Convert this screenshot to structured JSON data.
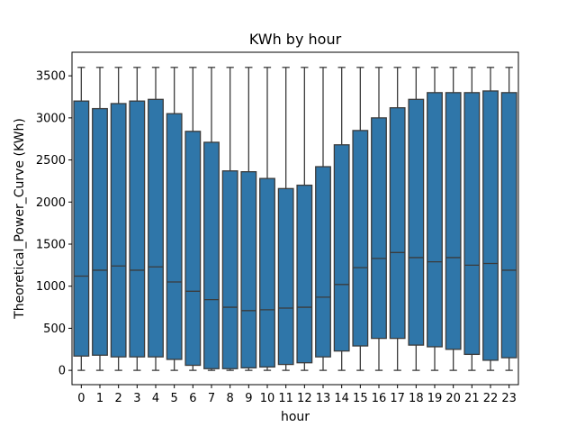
{
  "chart_data": {
    "type": "box",
    "title": "KWh by hour",
    "xlabel": "hour",
    "ylabel": "Theoretical_Power_Curve (KWh)",
    "ylim": [
      -170,
      3780
    ],
    "yticks": [
      0,
      500,
      1000,
      1500,
      2000,
      2500,
      3000,
      3500
    ],
    "grid": false,
    "box_color": "#2f76a9",
    "line_color": "#3b3b3b",
    "categories": [
      "0",
      "1",
      "2",
      "3",
      "4",
      "5",
      "6",
      "7",
      "8",
      "9",
      "10",
      "11",
      "12",
      "13",
      "14",
      "15",
      "16",
      "17",
      "18",
      "19",
      "20",
      "21",
      "22",
      "23"
    ],
    "boxes": [
      {
        "min": 0,
        "q1": 170,
        "median": 1120,
        "q3": 3200,
        "max": 3600
      },
      {
        "min": 0,
        "q1": 180,
        "median": 1190,
        "q3": 3110,
        "max": 3600
      },
      {
        "min": 0,
        "q1": 160,
        "median": 1240,
        "q3": 3170,
        "max": 3600
      },
      {
        "min": 0,
        "q1": 160,
        "median": 1190,
        "q3": 3200,
        "max": 3600
      },
      {
        "min": 0,
        "q1": 160,
        "median": 1230,
        "q3": 3220,
        "max": 3600
      },
      {
        "min": 0,
        "q1": 130,
        "median": 1050,
        "q3": 3050,
        "max": 3600
      },
      {
        "min": 0,
        "q1": 60,
        "median": 940,
        "q3": 2840,
        "max": 3600
      },
      {
        "min": 0,
        "q1": 20,
        "median": 840,
        "q3": 2710,
        "max": 3600
      },
      {
        "min": 0,
        "q1": 20,
        "median": 750,
        "q3": 2370,
        "max": 3600
      },
      {
        "min": 0,
        "q1": 30,
        "median": 710,
        "q3": 2360,
        "max": 3600
      },
      {
        "min": 0,
        "q1": 40,
        "median": 720,
        "q3": 2280,
        "max": 3600
      },
      {
        "min": 0,
        "q1": 70,
        "median": 740,
        "q3": 2160,
        "max": 3600
      },
      {
        "min": 0,
        "q1": 90,
        "median": 750,
        "q3": 2200,
        "max": 3600
      },
      {
        "min": 0,
        "q1": 160,
        "median": 870,
        "q3": 2420,
        "max": 3600
      },
      {
        "min": 0,
        "q1": 230,
        "median": 1020,
        "q3": 2680,
        "max": 3600
      },
      {
        "min": 0,
        "q1": 290,
        "median": 1220,
        "q3": 2850,
        "max": 3600
      },
      {
        "min": 0,
        "q1": 380,
        "median": 1330,
        "q3": 3000,
        "max": 3600
      },
      {
        "min": 0,
        "q1": 380,
        "median": 1400,
        "q3": 3120,
        "max": 3600
      },
      {
        "min": 0,
        "q1": 300,
        "median": 1340,
        "q3": 3220,
        "max": 3600
      },
      {
        "min": 0,
        "q1": 280,
        "median": 1290,
        "q3": 3300,
        "max": 3600
      },
      {
        "min": 0,
        "q1": 250,
        "median": 1340,
        "q3": 3300,
        "max": 3600
      },
      {
        "min": 0,
        "q1": 190,
        "median": 1250,
        "q3": 3300,
        "max": 3600
      },
      {
        "min": 0,
        "q1": 120,
        "median": 1270,
        "q3": 3320,
        "max": 3600
      },
      {
        "min": 0,
        "q1": 150,
        "median": 1190,
        "q3": 3300,
        "max": 3600
      }
    ]
  }
}
